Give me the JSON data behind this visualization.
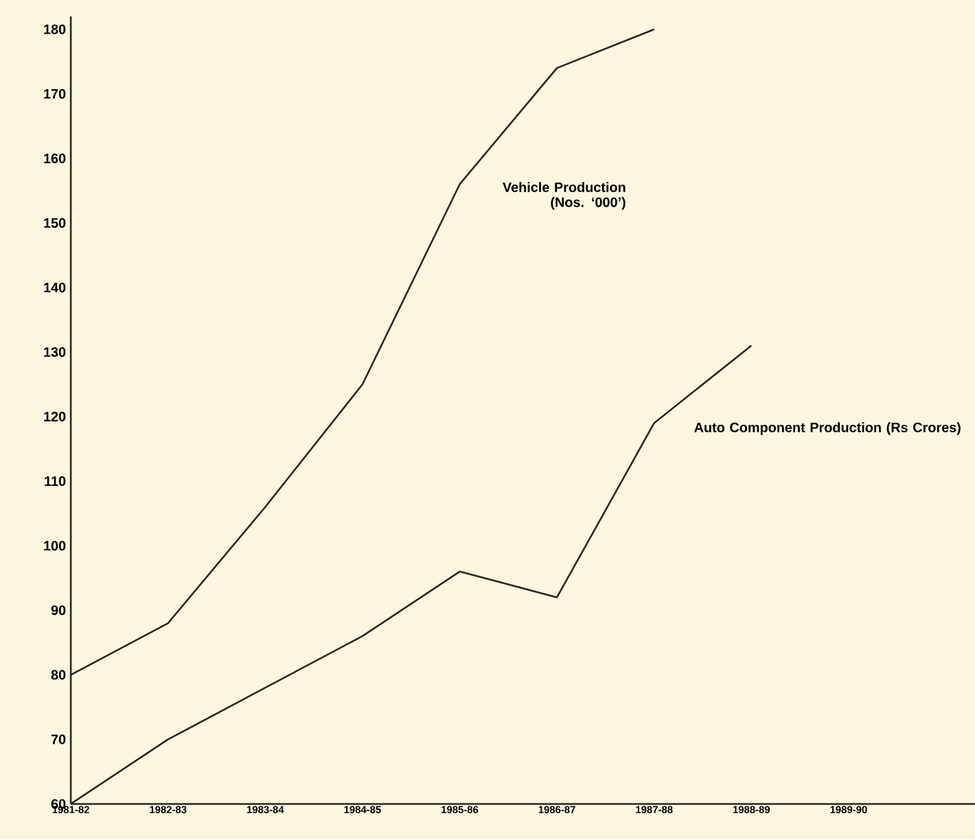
{
  "chart_data": {
    "type": "line",
    "categories": [
      "1981-82",
      "1982-83",
      "1983-84",
      "1984-85",
      "1985-86",
      "1986-87",
      "1987-88",
      "1988-89",
      "1989-90"
    ],
    "series": [
      {
        "name": "Vehicle Production (Nos. ‘000’)",
        "color": "#2a2622",
        "values": [
          80,
          88,
          106,
          125,
          156,
          174,
          180,
          null,
          null
        ]
      },
      {
        "name": "Auto Component Production (Rs Crores)",
        "color": "#2a2622",
        "values": [
          60,
          70,
          78,
          86,
          96,
          92,
          119,
          131,
          null
        ]
      }
    ],
    "ylim": [
      60,
      182
    ],
    "yticks": [
      60,
      70,
      80,
      90,
      100,
      110,
      120,
      130,
      140,
      150,
      160,
      170,
      180
    ],
    "marker": "none",
    "line_style": "solid"
  }
}
